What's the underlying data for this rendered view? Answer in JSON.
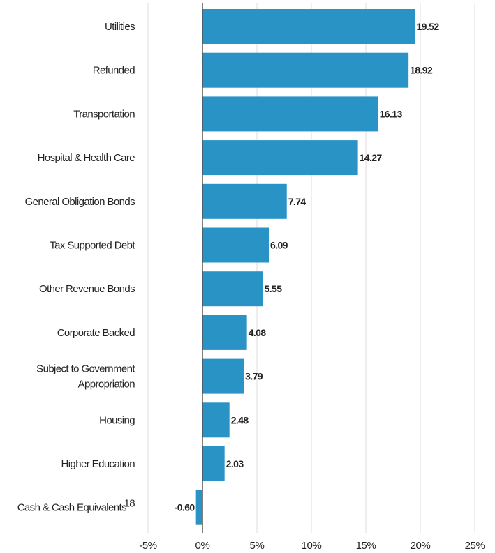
{
  "chart_data": {
    "type": "bar",
    "orientation": "horizontal",
    "categories": [
      {
        "label": [
          "Utilities"
        ],
        "value": 19.52,
        "value_label": "19.52"
      },
      {
        "label": [
          "Refunded"
        ],
        "value": 18.92,
        "value_label": "18.92"
      },
      {
        "label": [
          "Transportation"
        ],
        "value": 16.13,
        "value_label": "16.13"
      },
      {
        "label": [
          "Hospital & Health Care"
        ],
        "value": 14.27,
        "value_label": "14.27"
      },
      {
        "label": [
          "General Obligation Bonds"
        ],
        "value": 7.74,
        "value_label": "7.74"
      },
      {
        "label": [
          "Tax Supported Debt"
        ],
        "value": 6.09,
        "value_label": "6.09"
      },
      {
        "label": [
          "Other Revenue Bonds"
        ],
        "value": 5.55,
        "value_label": "5.55"
      },
      {
        "label": [
          "Corporate Backed"
        ],
        "value": 4.08,
        "value_label": "4.08"
      },
      {
        "label": [
          "Subject to Government",
          "Appropriation"
        ],
        "value": 3.79,
        "value_label": "3.79"
      },
      {
        "label": [
          "Housing"
        ],
        "value": 2.48,
        "value_label": "2.48"
      },
      {
        "label": [
          "Higher Education"
        ],
        "value": 2.03,
        "value_label": "2.03"
      },
      {
        "label": [
          "Cash & Cash Equivalents"
        ],
        "footnote": "18",
        "value": -0.6,
        "value_label": "-0.60"
      }
    ],
    "x_ticks": [
      {
        "value": -5,
        "label": "-5%"
      },
      {
        "value": 0,
        "label": "0%"
      },
      {
        "value": 5,
        "label": "5%"
      },
      {
        "value": 10,
        "label": "10%"
      },
      {
        "value": 15,
        "label": "15%"
      },
      {
        "value": 20,
        "label": "20%"
      },
      {
        "value": 25,
        "label": "25%"
      }
    ],
    "xlim": [
      -5,
      25
    ],
    "grid": "vertical",
    "bar_color": "#2a93c6"
  }
}
